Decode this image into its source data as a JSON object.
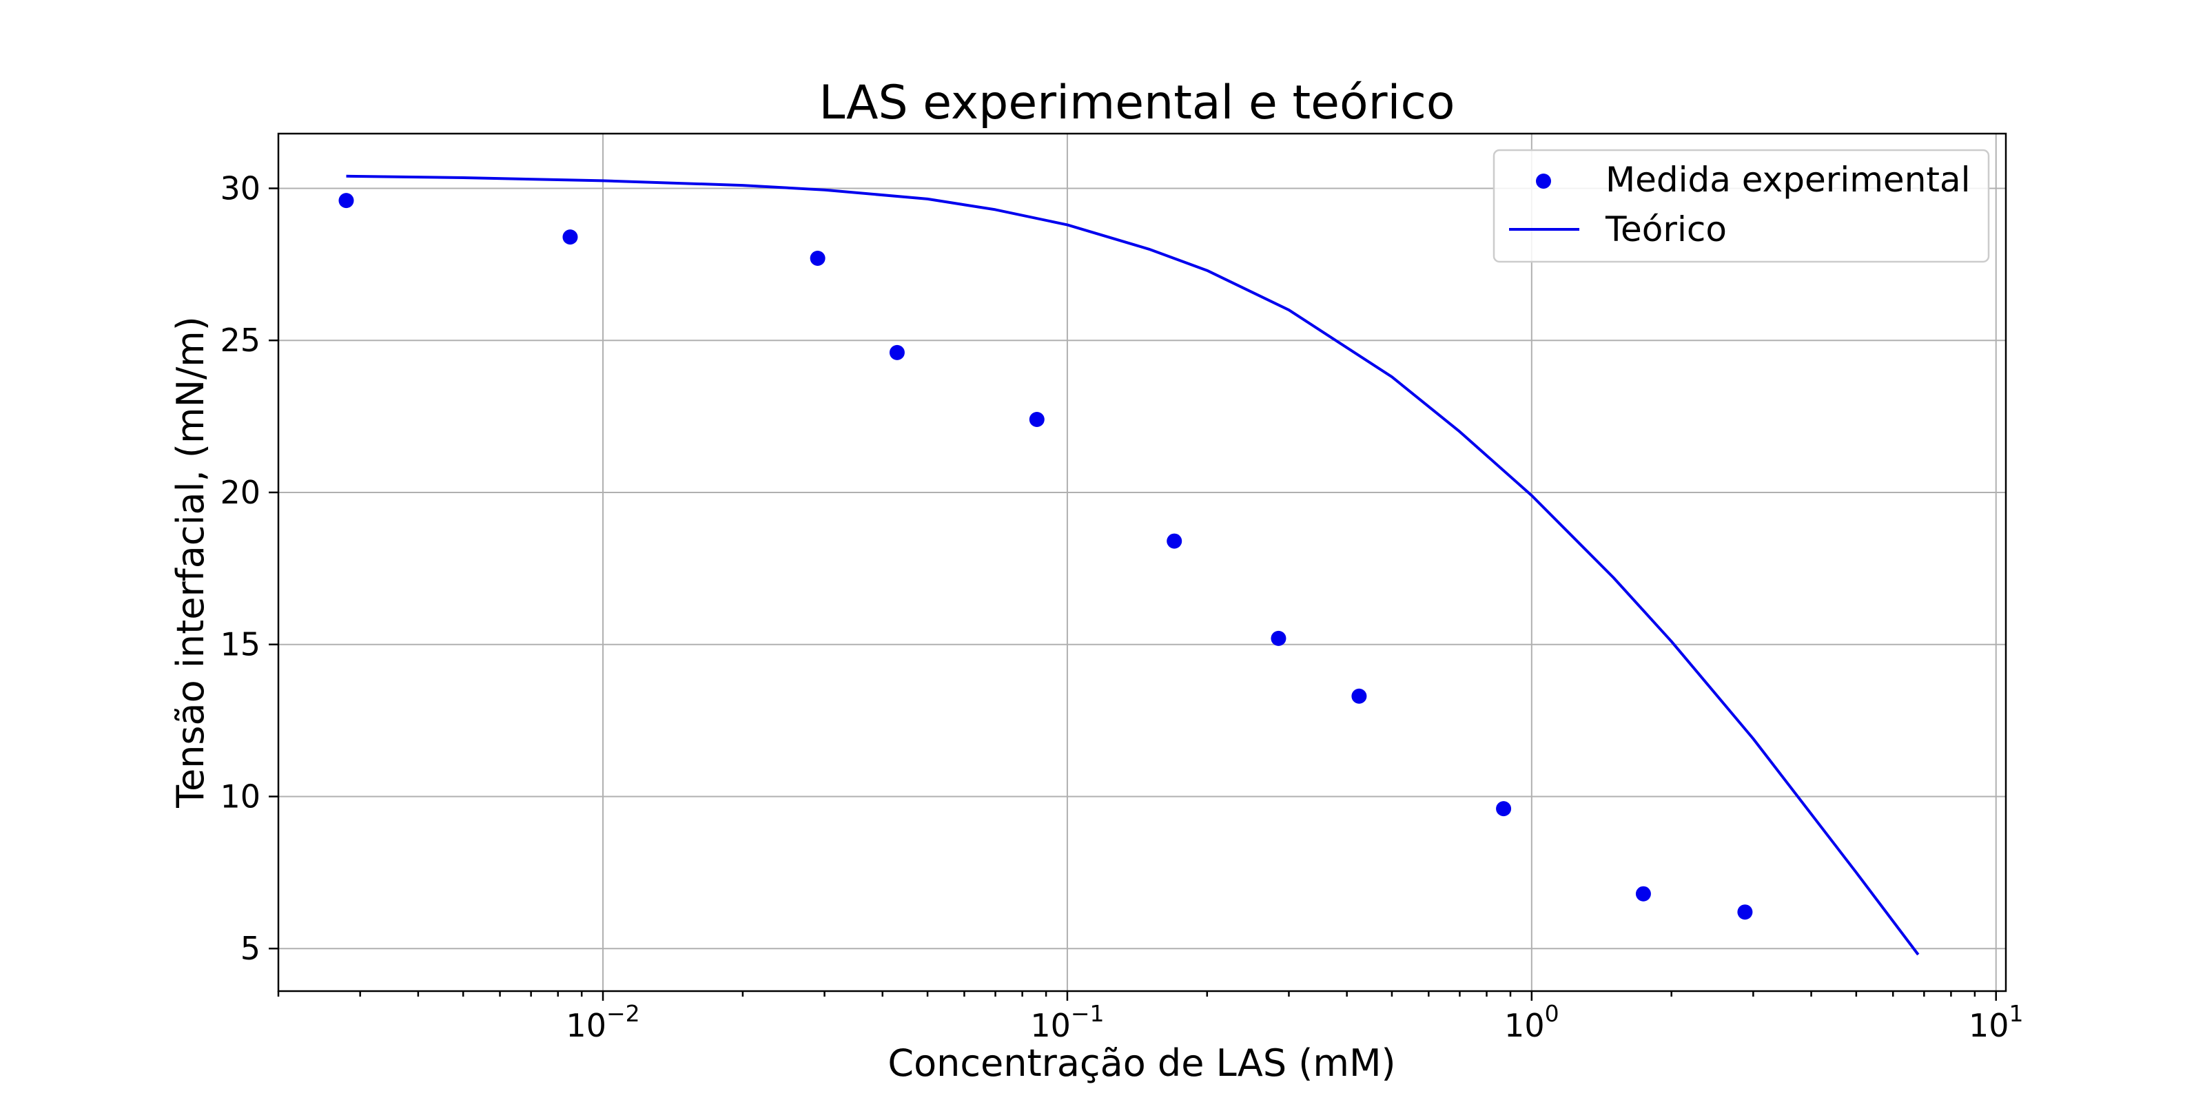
{
  "chart_data": {
    "type": "scatter",
    "title": "LAS experimental e teórico",
    "xlabel": "Concentração de LAS (mM)",
    "ylabel": "Tensão interfacial, (mN/m)",
    "xscale": "log",
    "xlim": [
      0.002,
      10.5
    ],
    "ylim": [
      3.6,
      31.8
    ],
    "x_ticks": [
      {
        "base": "10",
        "exp": "−2",
        "value": 0.01
      },
      {
        "base": "10",
        "exp": "−1",
        "value": 0.1
      },
      {
        "base": "10",
        "exp": "0",
        "value": 1
      },
      {
        "base": "10",
        "exp": "1",
        "value": 10
      }
    ],
    "y_ticks": [
      5,
      10,
      15,
      20,
      25,
      30
    ],
    "grid": true,
    "legend_position": "top-right",
    "series": [
      {
        "name": "Medida experimental",
        "kind": "scatter",
        "color": "#0000ee",
        "x": [
          0.0028,
          0.0085,
          0.029,
          0.043,
          0.086,
          0.17,
          0.285,
          0.425,
          0.87,
          1.74,
          2.88
        ],
        "y": [
          29.6,
          28.4,
          27.7,
          24.6,
          22.4,
          18.4,
          15.2,
          13.3,
          9.6,
          6.8,
          6.2
        ]
      },
      {
        "name": "Teórico",
        "kind": "line",
        "color": "#0000ee",
        "x": [
          0.0028,
          0.005,
          0.01,
          0.02,
          0.03,
          0.05,
          0.07,
          0.1,
          0.15,
          0.2,
          0.3,
          0.5,
          0.7,
          1.0,
          1.5,
          2.0,
          3.0,
          5.0,
          6.8
        ],
        "y": [
          30.4,
          30.35,
          30.25,
          30.1,
          29.95,
          29.65,
          29.3,
          28.8,
          28.0,
          27.3,
          26.0,
          23.8,
          22.0,
          19.9,
          17.2,
          15.1,
          11.9,
          7.5,
          4.8
        ]
      }
    ]
  }
}
